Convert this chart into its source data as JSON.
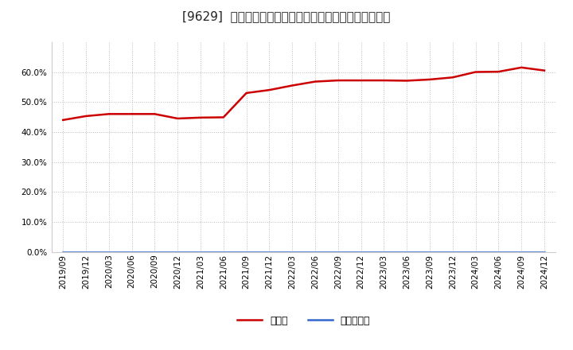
{
  "title": "[9629]  現預金、有利子負債の総資産に対する比率の推移",
  "x_labels": [
    "2019/09",
    "2019/12",
    "2020/03",
    "2020/06",
    "2020/09",
    "2020/12",
    "2021/03",
    "2021/06",
    "2021/09",
    "2021/12",
    "2022/03",
    "2022/06",
    "2022/09",
    "2022/12",
    "2023/03",
    "2023/06",
    "2023/09",
    "2023/12",
    "2024/03",
    "2024/06",
    "2024/09",
    "2024/12"
  ],
  "cash_values": [
    0.44,
    0.453,
    0.46,
    0.46,
    0.46,
    0.445,
    0.448,
    0.449,
    0.53,
    0.54,
    0.555,
    0.568,
    0.572,
    0.572,
    0.572,
    0.571,
    0.575,
    0.582,
    0.6,
    0.601,
    0.615,
    0.605
  ],
  "debt_values": [
    0.0,
    0.0,
    0.0,
    0.0,
    0.0,
    0.0,
    0.0,
    0.0,
    0.0,
    0.0,
    0.0,
    0.0,
    0.0,
    0.0,
    0.0,
    0.0,
    0.0,
    0.0,
    0.0,
    0.0,
    0.0,
    0.0
  ],
  "cash_color": "#cc0000",
  "debt_color": "#3366cc",
  "background_color": "#ffffff",
  "grid_color": "#bbbbbb",
  "ylim": [
    0.0,
    0.7
  ],
  "yticks": [
    0.0,
    0.1,
    0.2,
    0.3,
    0.4,
    0.5,
    0.6
  ],
  "legend_cash": "現預金",
  "legend_debt": "有利子負債",
  "title_fontsize": 11,
  "tick_fontsize": 7.5,
  "legend_fontsize": 9
}
